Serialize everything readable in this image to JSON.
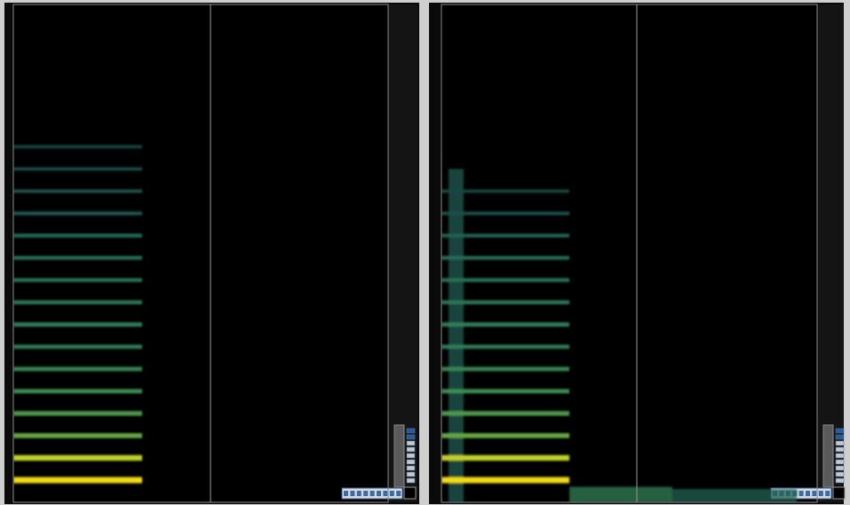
{
  "chart_data": [
    {
      "type": "spectrogram",
      "tick_labels": false,
      "xlim": [
        0,
        4.22
      ],
      "ylim": [
        0,
        11.2
      ],
      "clim": [
        0,
        1
      ],
      "markers": [
        2.22
      ],
      "bands": [
        {
          "y": 0.5,
          "x": [
            0,
            1.45
          ],
          "level": 1.0
        },
        {
          "y": 1.0,
          "x": [
            0,
            1.45
          ],
          "level": 0.86
        },
        {
          "y": 1.5,
          "x": [
            0,
            1.45
          ],
          "level": 0.62
        },
        {
          "y": 2.0,
          "x": [
            0,
            1.45
          ],
          "level": 0.56
        },
        {
          "y": 2.5,
          "x": [
            0,
            1.45
          ],
          "level": 0.5
        },
        {
          "y": 3.0,
          "x": [
            0,
            1.45
          ],
          "level": 0.47
        },
        {
          "y": 3.5,
          "x": [
            0,
            1.45
          ],
          "level": 0.43
        },
        {
          "y": 4.0,
          "x": [
            0,
            1.45
          ],
          "level": 0.44
        },
        {
          "y": 4.5,
          "x": [
            0,
            1.45
          ],
          "level": 0.4
        },
        {
          "y": 5.0,
          "x": [
            0,
            1.45
          ],
          "level": 0.38
        },
        {
          "y": 5.5,
          "x": [
            0,
            1.45
          ],
          "level": 0.36
        },
        {
          "y": 6.0,
          "x": [
            0,
            1.45
          ],
          "level": 0.33
        },
        {
          "y": 6.5,
          "x": [
            0,
            1.45
          ],
          "level": 0.26
        },
        {
          "y": 7.0,
          "x": [
            0,
            1.45
          ],
          "level": 0.23
        },
        {
          "y": 7.5,
          "x": [
            0,
            1.45
          ],
          "level": 0.2
        },
        {
          "y": 8.0,
          "x": [
            0,
            1.45
          ],
          "level": 0.16
        }
      ],
      "regions": []
    },
    {
      "type": "spectrogram",
      "tick_labels": false,
      "xlim": [
        0,
        4.23
      ],
      "ylim": [
        0,
        11.2
      ],
      "clim": [
        0,
        1
      ],
      "markers": [
        2.2
      ],
      "bands": [
        {
          "y": 0.5,
          "x": [
            0,
            1.44
          ],
          "level": 1.0
        },
        {
          "y": 1.0,
          "x": [
            0,
            1.44
          ],
          "level": 0.86
        },
        {
          "y": 1.5,
          "x": [
            0,
            1.44
          ],
          "level": 0.62
        },
        {
          "y": 2.0,
          "x": [
            0,
            1.44
          ],
          "level": 0.56
        },
        {
          "y": 2.5,
          "x": [
            0,
            1.44
          ],
          "level": 0.5
        },
        {
          "y": 3.0,
          "x": [
            0,
            1.44
          ],
          "level": 0.47
        },
        {
          "y": 3.5,
          "x": [
            0,
            1.44
          ],
          "level": 0.43
        },
        {
          "y": 4.0,
          "x": [
            0,
            1.44
          ],
          "level": 0.44
        },
        {
          "y": 4.5,
          "x": [
            0,
            1.44
          ],
          "level": 0.4
        },
        {
          "y": 5.0,
          "x": [
            0,
            1.44
          ],
          "level": 0.37
        },
        {
          "y": 5.5,
          "x": [
            0,
            1.44
          ],
          "level": 0.35
        },
        {
          "y": 6.0,
          "x": [
            0,
            1.44
          ],
          "level": 0.3
        },
        {
          "y": 6.5,
          "x": [
            0,
            1.44
          ],
          "level": 0.22
        },
        {
          "y": 7.0,
          "x": [
            0,
            1.44
          ],
          "level": 0.18
        }
      ],
      "regions": [
        {
          "x": [
            0.08,
            0.25
          ],
          "y": [
            0,
            7.5
          ],
          "level": 0.28
        },
        {
          "x": [
            1.44,
            2.6
          ],
          "y": [
            0,
            0.35
          ],
          "level": 0.45
        },
        {
          "x": [
            2.6,
            4.0
          ],
          "y": [
            0,
            0.3
          ],
          "level": 0.3
        }
      ]
    }
  ]
}
